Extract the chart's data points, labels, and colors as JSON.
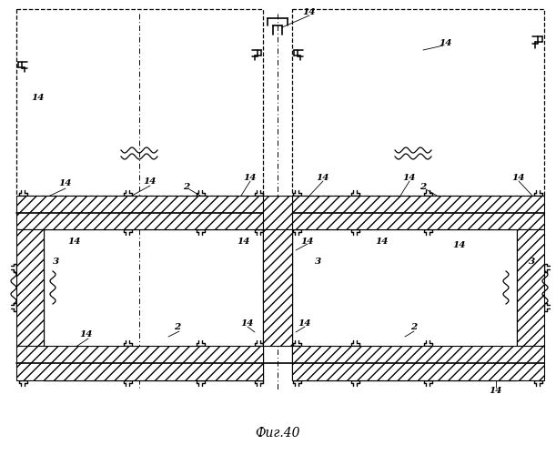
{
  "title": "Фиг.40",
  "bg_color": "#ffffff",
  "fig_width": 6.11,
  "fig_height": 5.0,
  "dpi": 100
}
